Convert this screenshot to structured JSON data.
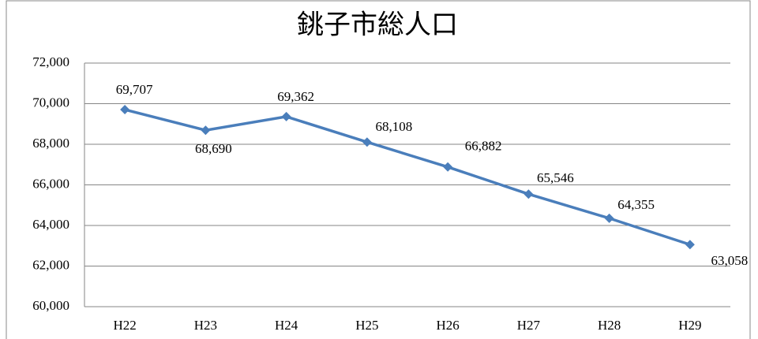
{
  "chart_data": {
    "type": "line",
    "title": "銚子市総人口",
    "categories": [
      "H22",
      "H23",
      "H24",
      "H25",
      "H26",
      "H27",
      "H28",
      "H29"
    ],
    "series": [
      {
        "color": "#4a7ebb",
        "values": [
          69707,
          68690,
          69362,
          68108,
          66882,
          65546,
          64355,
          63058
        ],
        "value_labels": [
          "69,707",
          "68,690",
          "69,362",
          "68,108",
          "66,882",
          "65,546",
          "64,355",
          "63,058"
        ]
      }
    ],
    "ylim": [
      60000,
      72000
    ],
    "yticks": [
      {
        "value": 60000,
        "label": "60,000"
      },
      {
        "value": 62000,
        "label": "62,000"
      },
      {
        "value": 64000,
        "label": "64,000"
      },
      {
        "value": 66000,
        "label": "66,000"
      },
      {
        "value": 68000,
        "label": "68,000"
      },
      {
        "value": 70000,
        "label": "70,000"
      },
      {
        "value": 72000,
        "label": "72,000"
      }
    ],
    "grid": true
  }
}
